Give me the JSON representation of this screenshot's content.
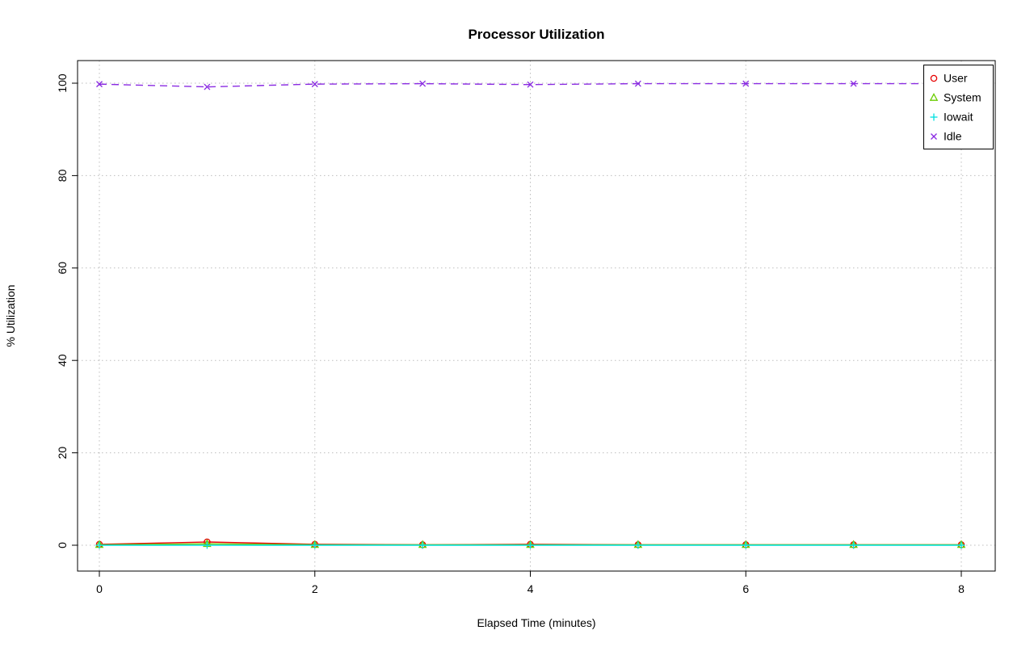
{
  "figure": {
    "background": "#ffffff"
  },
  "chart_data": {
    "type": "line",
    "title": "Processor Utilization",
    "xlabel": "Elapsed Time (minutes)",
    "ylabel": "% Utilization",
    "xlim": [
      0,
      8
    ],
    "ylim": [
      0,
      100
    ],
    "x_ticks": [
      0,
      2,
      4,
      6,
      8
    ],
    "y_ticks": [
      0,
      20,
      40,
      60,
      80,
      100
    ],
    "grid": true,
    "grid_style": "dotted",
    "grid_color": "#bdbdbd",
    "legend_position": "top-right",
    "x": [
      0,
      1,
      2,
      3,
      4,
      5,
      6,
      7,
      8
    ],
    "series": [
      {
        "name": "User",
        "color": "#e60000",
        "marker": "circle",
        "dash": "",
        "values": [
          0.2,
          0.7,
          0.2,
          0.1,
          0.2,
          0.1,
          0.1,
          0.1,
          0.1
        ]
      },
      {
        "name": "System",
        "color": "#6acc00",
        "marker": "triangle",
        "dash": "",
        "values": [
          0.1,
          0.3,
          0.1,
          0.1,
          0.1,
          0.1,
          0.1,
          0.1,
          0.1
        ]
      },
      {
        "name": "Iowait",
        "color": "#00e0e0",
        "marker": "plus",
        "dash": "",
        "values": [
          0,
          0,
          0,
          0,
          0,
          0,
          0,
          0,
          0
        ]
      },
      {
        "name": "Idle",
        "color": "#8a2be2",
        "marker": "x",
        "dash": "9 6",
        "values": [
          99.8,
          99.2,
          99.8,
          99.9,
          99.7,
          99.9,
          99.9,
          99.9,
          99.9
        ]
      }
    ]
  }
}
